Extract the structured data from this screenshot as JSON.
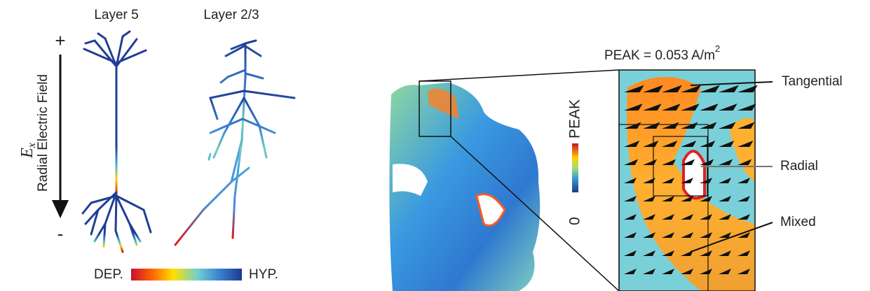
{
  "left_panel": {
    "labels": {
      "layer5": "Layer 5",
      "layer23": "Layer 2/3"
    },
    "axis": {
      "plus": "+",
      "minus": "-",
      "symbol": "E",
      "symbol_sub": "x",
      "title": "Radial Electric Field"
    },
    "colorbar": {
      "low": "DEP.",
      "high": "HYP."
    }
  },
  "right_panel": {
    "peak": {
      "text": "PEAK = 0.053 A/m",
      "superscript": "2"
    },
    "colorbar": {
      "top": "PEAK",
      "bottom": "0"
    },
    "annotations": [
      "Tangential",
      "Radial",
      "Mixed"
    ]
  }
}
